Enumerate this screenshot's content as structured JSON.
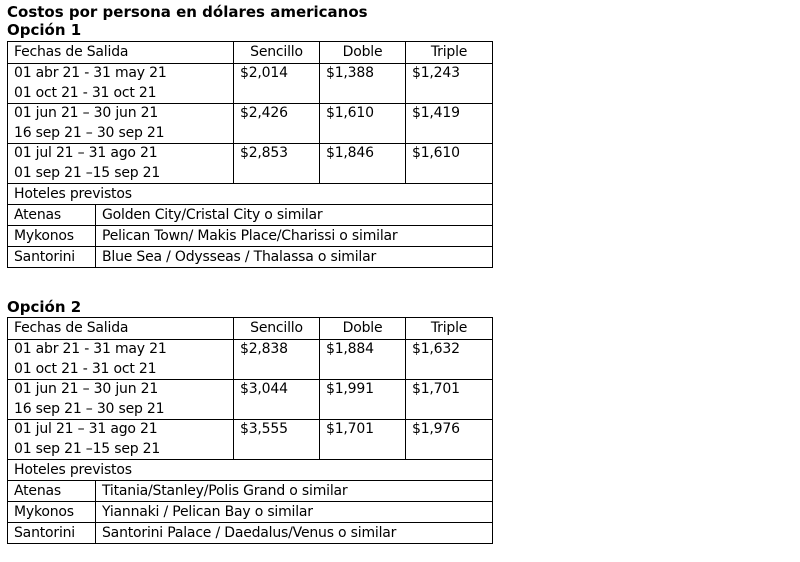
{
  "title": "Costos por persona en dólares americanos",
  "options": [
    {
      "heading": "Opción 1",
      "header": {
        "fechas": "Fechas de Salida",
        "sencillo": "Sencillo",
        "doble": "Doble",
        "triple": "Triple"
      },
      "rows": [
        {
          "date1": "01 abr 21 - 31 may 21",
          "date2": "01 oct 21 - 31 oct 21",
          "sencillo": "$2,014",
          "doble": "$1,388",
          "triple": "$1,243"
        },
        {
          "date1": "01 jun 21 – 30 jun 21",
          "date2": "16 sep 21 – 30 sep 21",
          "sencillo": "$2,426",
          "doble": "$1,610",
          "triple": "$1,419"
        },
        {
          "date1": "01 jul 21 – 31 ago 21",
          "date2": "01 sep 21 –15 sep 21",
          "sencillo": "$2,853",
          "doble": "$1,846",
          "triple": "$1,610"
        }
      ],
      "hoteles_label": "Hoteles previstos",
      "hotels": [
        {
          "city": "Atenas",
          "hotel": "Golden City/Cristal City o similar"
        },
        {
          "city": "Mykonos",
          "hotel": "Pelican Town/ Makis Place/Charissi o similar"
        },
        {
          "city": "Santorini",
          "hotel": "Blue Sea / Odysseas / Thalassa o similar"
        }
      ]
    },
    {
      "heading": "Opción 2",
      "header": {
        "fechas": "Fechas de Salida",
        "sencillo": "Sencillo",
        "doble": "Doble",
        "triple": "Triple"
      },
      "rows": [
        {
          "date1": "01 abr 21 - 31 may 21",
          "date2": "01 oct 21 - 31 oct 21",
          "sencillo": "$2,838",
          "doble": "$1,884",
          "triple": "$1,632"
        },
        {
          "date1": "01 jun 21 – 30 jun 21",
          "date2": "16 sep 21 – 30 sep 21",
          "sencillo": "$3,044",
          "doble": "$1,991",
          "triple": "$1,701"
        },
        {
          "date1": "01 jul 21 – 31 ago 21",
          "date2": "01 sep 21 –15 sep 21",
          "sencillo": "$3,555",
          "doble": "$1,701",
          "triple": "$1,976"
        }
      ],
      "hoteles_label": "Hoteles previstos",
      "hotels": [
        {
          "city": "Atenas",
          "hotel": "Titania/Stanley/Polis Grand o similar"
        },
        {
          "city": "Mykonos",
          "hotel": "Yiannaki /  Pelican Bay o similar"
        },
        {
          "city": "Santorini",
          "hotel": "Santorini Palace / Daedalus/Venus o similar"
        }
      ]
    }
  ]
}
